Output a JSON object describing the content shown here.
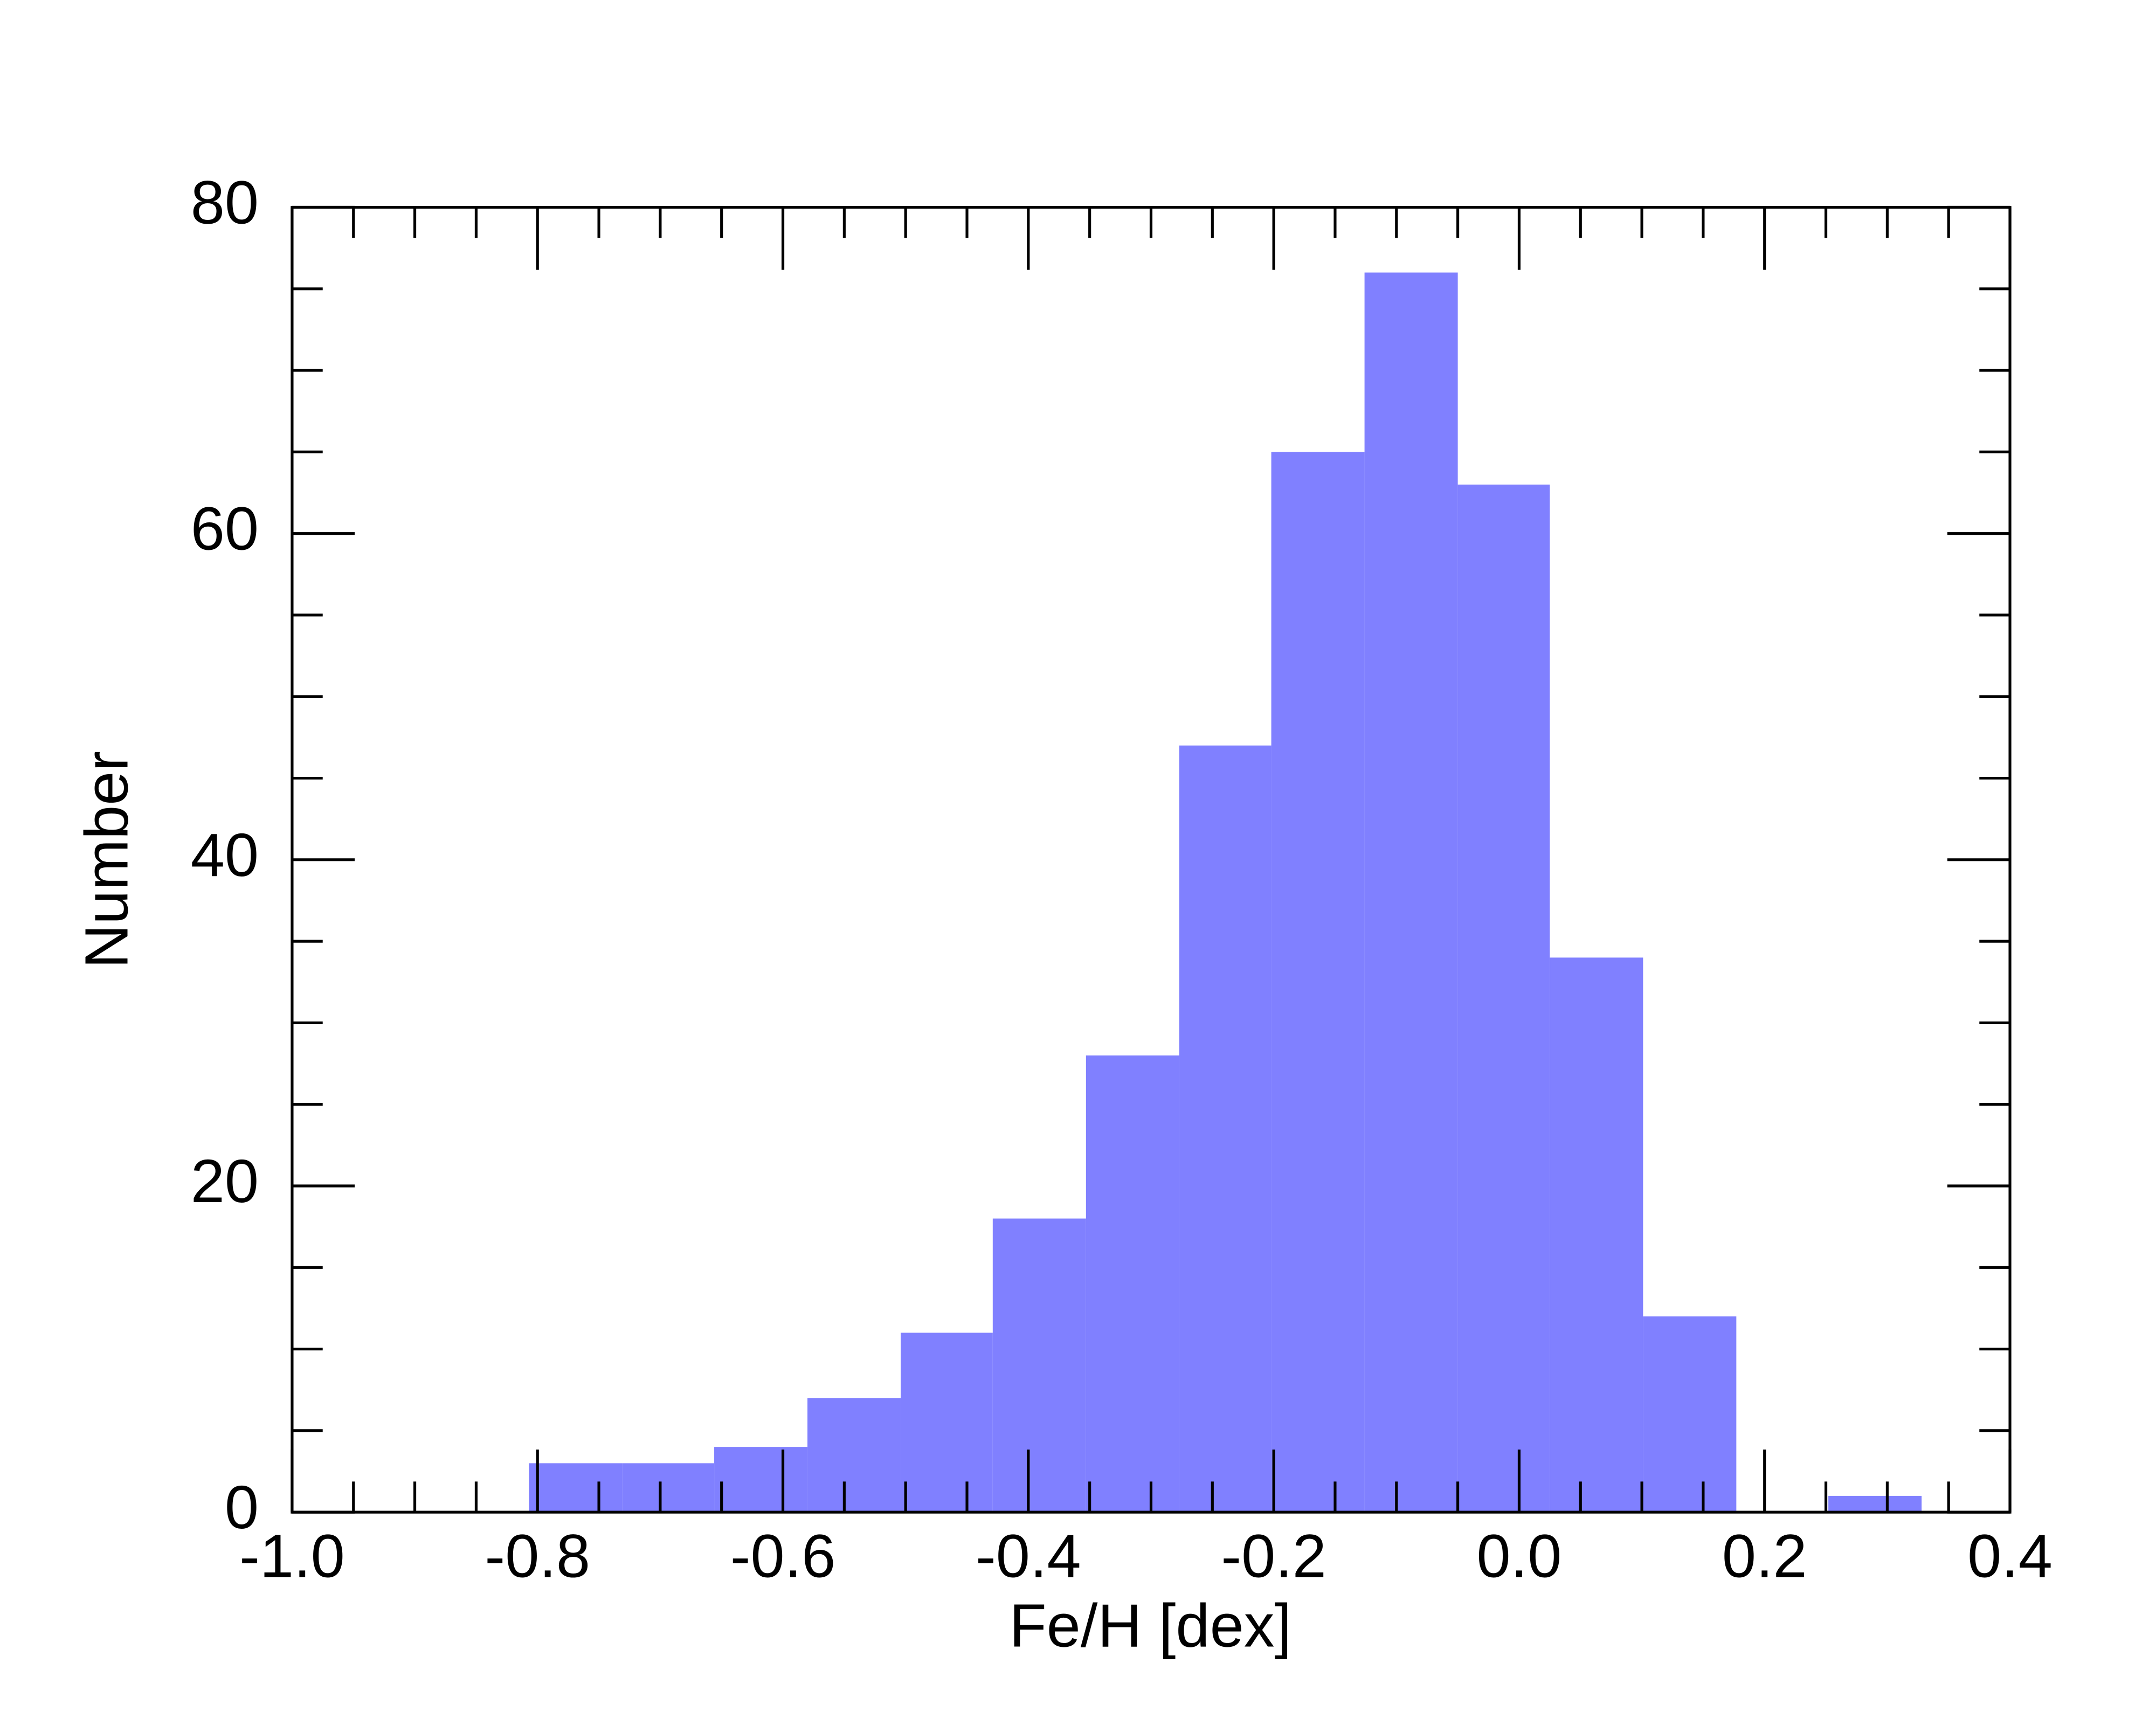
{
  "chart_data": {
    "type": "histogram",
    "x_label": "Fe/H [dex]",
    "y_label": "Number",
    "bins": [
      -0.807,
      -0.731,
      -0.656,
      -0.58,
      -0.504,
      -0.429,
      -0.353,
      -0.277,
      -0.202,
      -0.126,
      -0.05,
      0.025,
      0.101,
      0.177,
      0.252,
      0.328
    ],
    "values": [
      3,
      3,
      4,
      7,
      11,
      18,
      28,
      47,
      65,
      76,
      63,
      34,
      12,
      0,
      1
    ],
    "color": "#8080ff",
    "xlim": [
      -1.0,
      0.4
    ],
    "xticks": [
      {
        "value": -1.0,
        "label": "-1.0"
      },
      -0.8,
      -0.6,
      -0.4,
      -0.2,
      {
        "value": 0.0,
        "label": "0.0"
      },
      0.2,
      0.4
    ],
    "xminorticks": [
      -0.95,
      -0.9,
      -0.85,
      -0.75,
      -0.7,
      -0.65,
      -0.55,
      -0.5,
      -0.45,
      -0.35,
      -0.3,
      -0.25,
      -0.15,
      -0.1,
      -0.05,
      0.05,
      0.1,
      0.15,
      0.25,
      0.3,
      0.35
    ],
    "ylim": [
      0,
      80
    ],
    "yticks": [
      0,
      20,
      40,
      60,
      80
    ],
    "yminorticks": [
      5,
      10,
      15,
      25,
      30,
      35,
      45,
      50,
      55,
      65,
      70,
      75
    ]
  }
}
